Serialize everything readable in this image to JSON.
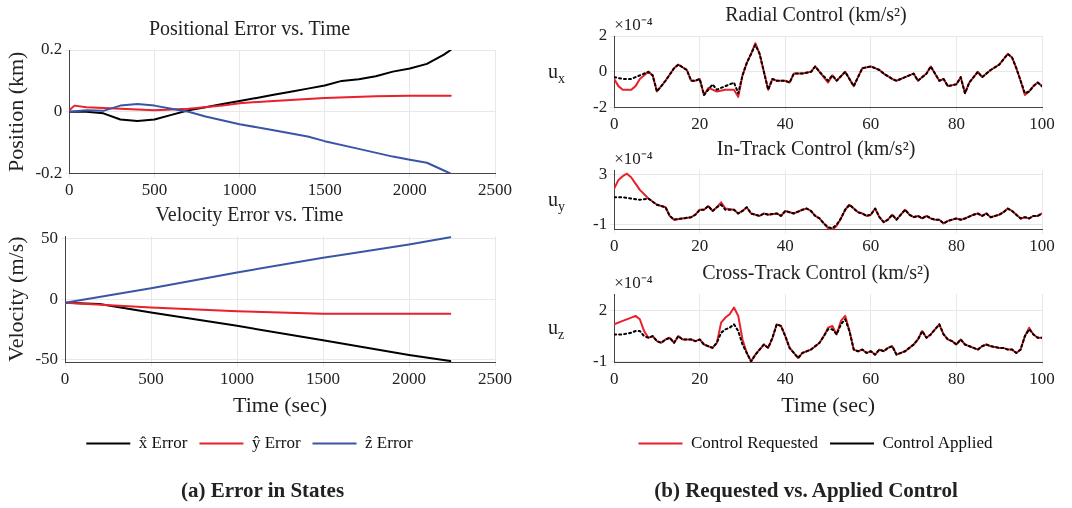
{
  "chart_data": [
    {
      "type": "line",
      "title": "Positional Error vs. Time",
      "ylabel": "Position (km)",
      "xlim": [
        0,
        2500
      ],
      "xticks": [
        0,
        500,
        1000,
        1500,
        2000,
        2500
      ],
      "ylim": [
        -0.2,
        0.2
      ],
      "yticks": [
        -0.2,
        0,
        0.2
      ],
      "grid": true,
      "marker": "none",
      "legend": false,
      "series": [
        {
          "color": "#000000",
          "x": [
            0,
            100,
            200,
            300,
            400,
            500,
            600,
            700,
            800,
            900,
            1000,
            1100,
            1200,
            1300,
            1400,
            1500,
            1600,
            1700,
            1800,
            1900,
            2000,
            2100,
            2200,
            2240
          ],
          "values": [
            0,
            0,
            -0.005,
            -0.025,
            -0.03,
            -0.025,
            -0.01,
            0.005,
            0.015,
            0.025,
            0.035,
            0.045,
            0.055,
            0.065,
            0.075,
            0.085,
            0.1,
            0.105,
            0.115,
            0.13,
            0.14,
            0.155,
            0.185,
            0.2
          ]
        },
        {
          "color": "#e8212a",
          "x": [
            0,
            30,
            100,
            300,
            500,
            700,
            900,
            1000,
            1200,
            1500,
            1800,
            2000,
            2240
          ],
          "values": [
            0.005,
            0.02,
            0.015,
            0.01,
            0.005,
            0.01,
            0.02,
            0.028,
            0.035,
            0.045,
            0.05,
            0.052,
            0.052
          ]
        },
        {
          "color": "#3a55a5",
          "x": [
            0,
            100,
            200,
            300,
            400,
            500,
            600,
            700,
            800,
            1000,
            1200,
            1400,
            1500,
            1700,
            1900,
            2000,
            2100,
            2200,
            2240
          ],
          "values": [
            0,
            0.005,
            0.003,
            0.02,
            0.025,
            0.02,
            0.01,
            0,
            -0.015,
            -0.04,
            -0.06,
            -0.08,
            -0.095,
            -0.12,
            -0.145,
            -0.155,
            -0.165,
            -0.19,
            -0.2
          ]
        }
      ]
    },
    {
      "type": "line",
      "title": "Velocity Error vs. Time",
      "xlabel": "Time (sec)",
      "ylabel": "Velocity (m/s)",
      "xlim": [
        0,
        2500
      ],
      "xticks": [
        0,
        500,
        1000,
        1500,
        2000,
        2500
      ],
      "ylim": [
        -52,
        52
      ],
      "yticks": [
        -50,
        0,
        50
      ],
      "grid": true,
      "marker": "none",
      "legend": "bottom",
      "annotations": [
        "(a) Error in States"
      ],
      "series": [
        {
          "name": "x̂ Error",
          "color": "#000000",
          "x": [
            0,
            200,
            500,
            1000,
            1500,
            2000,
            2240
          ],
          "values": [
            -3,
            -4,
            -11,
            -22,
            -34,
            -46,
            -51
          ]
        },
        {
          "name": "ŷ Error",
          "color": "#e8212a",
          "x": [
            0,
            500,
            1000,
            1500,
            2000,
            2240
          ],
          "values": [
            -3,
            -7,
            -10,
            -12,
            -12,
            -12
          ]
        },
        {
          "name": "ẑ Error",
          "color": "#3a55a5",
          "x": [
            0,
            500,
            1000,
            1500,
            2000,
            2240
          ],
          "values": [
            -3,
            9,
            22,
            34,
            45,
            51
          ]
        }
      ]
    },
    {
      "type": "line",
      "title": "Radial Control (km/s²)",
      "ylabel": "u$_{x}$",
      "xlim": [
        0,
        100
      ],
      "xticks": [
        0,
        20,
        40,
        60,
        80,
        100
      ],
      "ylim": [
        -2,
        2
      ],
      "yticks": [
        -2,
        0,
        2
      ],
      "grid": true,
      "marker": "none",
      "legend": false,
      "annotations": [
        "×10⁻⁴"
      ],
      "x": [
        0,
        1,
        2,
        4,
        5,
        6,
        8,
        9,
        10,
        11,
        12,
        14,
        15,
        17,
        18,
        19,
        20,
        21,
        22,
        23,
        24,
        26,
        28,
        29,
        30,
        31,
        32,
        33,
        34,
        35,
        36,
        37,
        38,
        40,
        41,
        42,
        44,
        46,
        47,
        48,
        50,
        51,
        52,
        54,
        55,
        56,
        57,
        58,
        60,
        62,
        63,
        65,
        66,
        68,
        70,
        71,
        73,
        74,
        76,
        77,
        78,
        80,
        81,
        82,
        83,
        85,
        86,
        88,
        90,
        92,
        93,
        94,
        95,
        96,
        97,
        98,
        99,
        100
      ],
      "series": [
        {
          "color": "#e8212a",
          "line_style": "solid",
          "values": [
            -0.4,
            -0.8,
            -1.0,
            -1.0,
            -0.8,
            -0.4,
            0,
            -0.2,
            -1.1,
            -0.8,
            -0.5,
            0.2,
            0.4,
            0.1,
            -0.5,
            -0.5,
            -0.4,
            -1.3,
            -0.9,
            -1.0,
            -1.1,
            -1.0,
            -1.0,
            -1.4,
            -0.2,
            0.5,
            1.0,
            1.6,
            1.0,
            0,
            -1.0,
            -0.4,
            -0.5,
            -0.5,
            -0.6,
            -0.1,
            -0.1,
            0,
            0.3,
            0,
            -0.6,
            -0.2,
            -0.5,
            0,
            -0.4,
            -0.8,
            -0.3,
            0.2,
            0.3,
            0.1,
            -0.1,
            -0.4,
            -0.5,
            -0.3,
            -0.1,
            -0.5,
            -0.1,
            0.3,
            -0.5,
            -0.4,
            -0.8,
            -0.7,
            -0.3,
            -1.2,
            -0.6,
            0,
            -0.3,
            0.1,
            0.4,
            1.0,
            0.8,
            0.2,
            -0.5,
            -1.3,
            -1.1,
            -0.8,
            -0.6,
            -0.8
          ]
        },
        {
          "color": "#000000",
          "line_style": "dotted",
          "values": [
            -0.3,
            -0.35,
            -0.4,
            -0.4,
            -0.3,
            -0.2,
            0,
            -0.2,
            -1.1,
            -0.8,
            -0.5,
            0.2,
            0.4,
            0.1,
            -0.5,
            -0.5,
            -0.4,
            -1.3,
            -1.0,
            -0.7,
            -1.0,
            -0.8,
            -0.6,
            -1.2,
            -0.2,
            0.5,
            1.0,
            1.5,
            1.0,
            0,
            -1.0,
            -0.4,
            -0.5,
            -0.5,
            -0.6,
            -0.1,
            -0.1,
            0,
            0.3,
            0,
            -0.5,
            -0.2,
            -0.5,
            0,
            -0.4,
            -0.8,
            -0.3,
            0.2,
            0.3,
            0.1,
            -0.1,
            -0.4,
            -0.5,
            -0.3,
            -0.1,
            -0.5,
            -0.1,
            0.3,
            -0.5,
            -0.4,
            -0.8,
            -0.7,
            -0.3,
            -1.2,
            -0.6,
            0,
            -0.3,
            0.1,
            0.4,
            1.0,
            0.8,
            0.2,
            -0.5,
            -1.2,
            -1.1,
            -0.8,
            -0.6,
            -0.8
          ]
        }
      ]
    },
    {
      "type": "line",
      "title": "In-Track Control (km/s²)",
      "ylabel": "u$_{y}$",
      "xlim": [
        0,
        100
      ],
      "xticks": [
        0,
        20,
        40,
        60,
        80,
        100
      ],
      "ylim": [
        -1.4,
        3.4
      ],
      "yticks": [
        -1,
        3
      ],
      "grid": true,
      "marker": "none",
      "legend": false,
      "annotations": [
        "×10⁻⁴"
      ],
      "x": [
        0,
        1,
        2,
        3,
        4,
        5,
        6,
        8,
        10,
        12,
        13,
        14,
        16,
        18,
        19,
        20,
        21,
        22,
        23,
        24,
        25,
        26,
        28,
        29,
        30,
        31,
        32,
        34,
        35,
        36,
        38,
        39,
        40,
        42,
        44,
        45,
        46,
        47,
        48,
        49,
        50,
        51,
        52,
        53,
        54,
        55,
        56,
        57,
        58,
        59,
        60,
        61,
        62,
        63,
        64,
        65,
        66,
        67,
        68,
        69,
        70,
        71,
        72,
        73,
        74,
        75,
        76,
        77,
        78,
        80,
        81,
        82,
        84,
        85,
        86,
        87,
        88,
        90,
        91,
        92,
        93,
        94,
        95,
        96,
        97,
        98,
        99,
        100
      ],
      "series": [
        {
          "color": "#e8212a",
          "line_style": "solid",
          "values": [
            1.9,
            2.6,
            2.9,
            3.1,
            2.8,
            2.3,
            1.8,
            1.1,
            0.6,
            0.4,
            -0.3,
            -0.6,
            -0.5,
            -0.4,
            -0.2,
            0.2,
            0.2,
            0.5,
            0.1,
            0.4,
            0.8,
            0.3,
            0.2,
            -0.1,
            0.1,
            0.4,
            -0.1,
            -0.3,
            -0.1,
            -0.2,
            -0.1,
            -0.3,
            0.1,
            -0.1,
            0.2,
            0.3,
            0.1,
            -0.3,
            -0.5,
            -0.9,
            -1.3,
            -1.4,
            -1.1,
            -0.5,
            0.2,
            0.6,
            0.3,
            0,
            -0.1,
            -0.3,
            -0.2,
            0.3,
            -0.4,
            -0.8,
            -0.6,
            -0.2,
            -0.6,
            -0.2,
            0.2,
            -0.2,
            -0.4,
            -0.3,
            -0.5,
            -0.3,
            -0.5,
            -0.6,
            -0.6,
            -0.9,
            -0.7,
            -0.5,
            -0.6,
            -0.5,
            -0.2,
            -0.1,
            -0.3,
            -0.1,
            -0.4,
            -0.2,
            0,
            0.3,
            0.1,
            -0.2,
            -0.5,
            -0.4,
            -0.5,
            -0.3,
            -0.3,
            -0.1
          ]
        },
        {
          "color": "#000000",
          "line_style": "dotted",
          "values": [
            1.2,
            1.2,
            1.2,
            1.15,
            1.1,
            1.05,
            1.0,
            1.1,
            0.6,
            0.4,
            -0.3,
            -0.6,
            -0.5,
            -0.4,
            -0.2,
            0.2,
            0.2,
            0.5,
            0.1,
            0.4,
            0.6,
            0.2,
            0.2,
            -0.1,
            0.1,
            0.4,
            -0.1,
            -0.3,
            -0.1,
            -0.2,
            -0.1,
            -0.3,
            0.1,
            -0.1,
            0.2,
            0.3,
            0.1,
            -0.3,
            -0.5,
            -0.9,
            -1.2,
            -1.3,
            -1.0,
            -0.5,
            0.2,
            0.6,
            0.3,
            0,
            -0.1,
            -0.3,
            -0.2,
            0.3,
            -0.4,
            -0.8,
            -0.6,
            -0.2,
            -0.6,
            -0.2,
            0.2,
            -0.2,
            -0.4,
            -0.3,
            -0.5,
            -0.3,
            -0.5,
            -0.6,
            -0.6,
            -0.9,
            -0.7,
            -0.5,
            -0.6,
            -0.5,
            -0.2,
            -0.1,
            -0.3,
            -0.1,
            -0.4,
            -0.2,
            0,
            0.3,
            0.1,
            -0.2,
            -0.5,
            -0.4,
            -0.5,
            -0.3,
            -0.3,
            -0.1
          ]
        }
      ]
    },
    {
      "type": "line",
      "title": "Cross-Track Control (km/s²)",
      "xlabel": "Time (sec)",
      "ylabel": "u$_{z}$",
      "xlim": [
        0,
        100
      ],
      "xticks": [
        0,
        20,
        40,
        60,
        80,
        100
      ],
      "ylim": [
        -1.05,
        3
      ],
      "yticks": [
        -1,
        2
      ],
      "grid": true,
      "marker": "none",
      "legend": "bottom",
      "annotations": [
        "×10⁻⁴",
        "(b) Requested vs. Applied Control"
      ],
      "x": [
        0,
        2,
        4,
        5,
        6,
        7,
        8,
        9,
        10,
        11,
        12,
        13,
        14,
        15,
        16,
        18,
        19,
        20,
        21,
        22,
        23,
        24,
        25,
        26,
        27,
        28,
        29,
        30,
        31,
        32,
        33,
        34,
        35,
        36,
        37,
        38,
        39,
        40,
        41,
        42,
        43,
        44,
        45,
        46,
        47,
        48,
        49,
        50,
        51,
        52,
        53,
        54,
        55,
        56,
        57,
        58,
        59,
        60,
        61,
        62,
        63,
        64,
        65,
        66,
        67,
        68,
        69,
        70,
        71,
        72,
        73,
        74,
        75,
        76,
        77,
        78,
        79,
        80,
        81,
        82,
        84,
        85,
        86,
        87,
        88,
        90,
        91,
        92,
        93,
        94,
        95,
        96,
        97,
        98,
        99,
        100
      ],
      "series": [
        {
          "name": "Control Requested",
          "color": "#e8212a",
          "line_style": "solid",
          "values": [
            1.2,
            1.4,
            1.6,
            1.7,
            1.5,
            0.8,
            0.4,
            0.5,
            0.2,
            0.1,
            0.3,
            0.4,
            0.1,
            0.5,
            0.3,
            0.3,
            0.2,
            0.3,
            0.0,
            -0.1,
            -0.2,
            0.1,
            1.3,
            1.6,
            1.8,
            2.2,
            1.7,
            0.3,
            -0.5,
            -1.0,
            -0.6,
            -0.3,
            0.0,
            -0.2,
            0.4,
            1.2,
            1.1,
            0.5,
            -0.2,
            -0.5,
            -0.8,
            -0.5,
            -0.4,
            -0.3,
            -0.1,
            0.1,
            0.5,
            1.0,
            1.1,
            0.6,
            1.4,
            1.7,
            0.8,
            -0.3,
            -0.4,
            -0.3,
            -0.5,
            -0.4,
            -0.6,
            -0.3,
            -0.4,
            -0.2,
            -0.1,
            -0.6,
            -0.5,
            -0.4,
            -0.2,
            0.0,
            0.3,
            0.8,
            0.4,
            0.6,
            0.9,
            1.2,
            0.6,
            0.3,
            0.2,
            0.0,
            0.3,
            0.0,
            -0.2,
            -0.3,
            -0.1,
            0.0,
            -0.1,
            -0.2,
            -0.2,
            -0.3,
            -0.3,
            -0.5,
            -0.3,
            0.5,
            1.0,
            0.6,
            0.4,
            0.4
          ]
        },
        {
          "name": "Control Applied",
          "color": "#000000",
          "line_style": "dotted",
          "values": [
            0.6,
            0.6,
            0.7,
            0.8,
            0.8,
            0.5,
            0.4,
            0.5,
            0.2,
            0.1,
            0.3,
            0.4,
            0.1,
            0.5,
            0.3,
            0.3,
            0.2,
            0.3,
            0.0,
            -0.1,
            -0.2,
            0.1,
            0.7,
            0.9,
            1.0,
            1.2,
            0.8,
            0.0,
            -0.5,
            -1.0,
            -0.6,
            -0.3,
            0.0,
            -0.2,
            0.4,
            1.2,
            1.1,
            0.5,
            -0.2,
            -0.5,
            -0.8,
            -0.5,
            -0.4,
            -0.3,
            -0.1,
            0.1,
            0.5,
            0.9,
            0.9,
            0.6,
            1.2,
            1.5,
            0.8,
            -0.3,
            -0.4,
            -0.3,
            -0.5,
            -0.4,
            -0.6,
            -0.3,
            -0.4,
            -0.2,
            -0.1,
            -0.6,
            -0.5,
            -0.4,
            -0.2,
            0.0,
            0.3,
            0.8,
            0.4,
            0.6,
            0.9,
            1.2,
            0.6,
            0.3,
            0.2,
            0.0,
            0.3,
            0.0,
            -0.2,
            -0.3,
            -0.1,
            0.0,
            -0.1,
            -0.2,
            -0.2,
            -0.3,
            -0.3,
            -0.5,
            -0.3,
            0.5,
            0.9,
            0.6,
            0.4,
            0.4
          ]
        }
      ]
    }
  ]
}
